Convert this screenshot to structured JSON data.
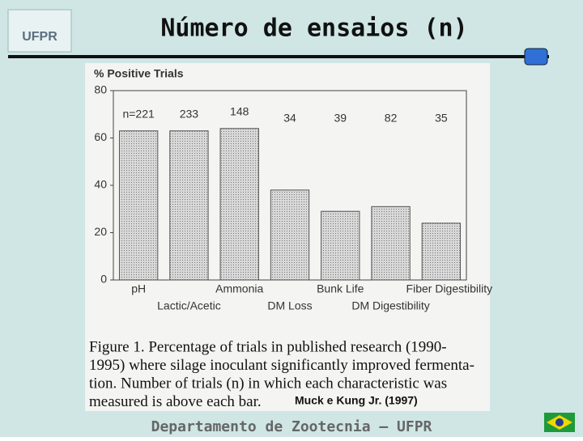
{
  "slide": {
    "title": "Número de ensaios (n)",
    "logo": "UFPR",
    "footer": "Departamento de Zootecnia – UFPR",
    "source": "Muck e Kung Jr. (1997)",
    "caption": [
      "Figure 1.  Percentage of trials in published research (1990-",
      "1995) where silage inoculant significantly improved fermenta-",
      "tion.  Number of trials (n) in which each characteristic was",
      "measured is above each bar."
    ]
  },
  "chart_data": {
    "type": "bar",
    "y_label": "% Positive Trials",
    "categories": [
      "pH",
      "Lactic/Acetic",
      "Ammonia",
      "DM Loss",
      "Bunk Life",
      "DM Digestibility",
      "Fiber Digestibility"
    ],
    "values": [
      63,
      63,
      64,
      38,
      29,
      31,
      24
    ],
    "annotations": [
      "n=221",
      "233",
      "148",
      "34",
      "39",
      "82",
      "35"
    ],
    "color": "#c4c4c4",
    "ylim": [
      0,
      80
    ],
    "yticks": [
      0,
      20,
      40,
      60,
      80
    ]
  }
}
